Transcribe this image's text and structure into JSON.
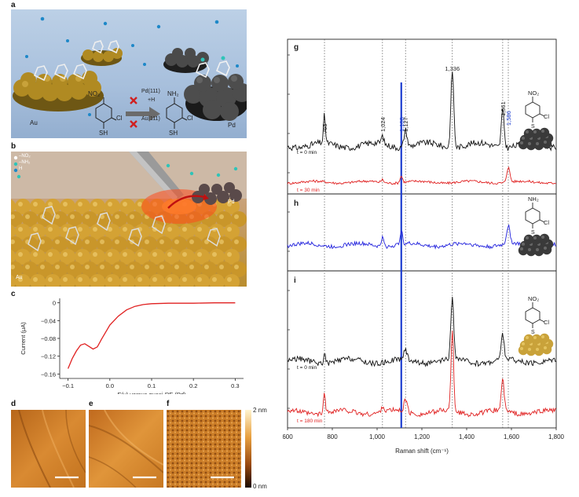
{
  "panels": {
    "a": {
      "label": "a",
      "metal_left": "Au",
      "metal_right": "Pd",
      "surface_top": "Pd(111)",
      "surface_bottom": "Au(111)",
      "reaction_arrow": "+H",
      "reactant_groups": [
        "NO₂",
        "Cl",
        "SH"
      ],
      "product_groups": [
        "NH₂",
        "Cl",
        "SH"
      ]
    },
    "b": {
      "label": "b",
      "legend": [
        "–NO₂",
        "–NH₂",
        "H"
      ],
      "metal_left": "Au",
      "metal_right": "Pd"
    },
    "c": {
      "label": "c"
    },
    "d": {
      "label": "d"
    },
    "e": {
      "label": "e"
    },
    "f": {
      "label": "f",
      "scale_top": "2 nm",
      "scale_bottom": "0 nm"
    },
    "g": {
      "label": "g",
      "groups": [
        "NO₂",
        "S",
        "Cl"
      ]
    },
    "h": {
      "label": "h",
      "groups": [
        "NH₂",
        "S",
        "Cl"
      ]
    },
    "i": {
      "label": "i",
      "groups": [
        "NO₂",
        "S",
        "Cl"
      ]
    }
  },
  "chart_data": [
    {
      "type": "line",
      "panel": "c",
      "xlabel": "E(v) versus quasi-RE (Pd)",
      "ylabel": "Current (μA)",
      "xlim": [
        -0.12,
        0.32
      ],
      "ylim": [
        -0.17,
        0.01
      ],
      "xticks": [
        "−0.1",
        "0.0",
        "0.1",
        "0.2",
        "0.3"
      ],
      "xtick_values": [
        -0.1,
        0.0,
        0.1,
        0.2,
        0.3
      ],
      "yticks": [
        "0",
        "−0.04",
        "−0.08",
        "−0.12",
        "−0.16"
      ],
      "ytick_values": [
        0,
        -0.04,
        -0.08,
        -0.12,
        -0.16
      ],
      "color": "#e02020",
      "x": [
        -0.1,
        -0.09,
        -0.08,
        -0.07,
        -0.06,
        -0.05,
        -0.04,
        -0.03,
        -0.02,
        -0.01,
        0.0,
        0.02,
        0.04,
        0.06,
        0.08,
        0.1,
        0.14,
        0.2,
        0.25,
        0.3
      ],
      "y": [
        -0.148,
        -0.125,
        -0.108,
        -0.095,
        -0.092,
        -0.098,
        -0.104,
        -0.099,
        -0.082,
        -0.066,
        -0.05,
        -0.03,
        -0.016,
        -0.008,
        -0.004,
        -0.002,
        -0.001,
        -0.001,
        0.0,
        0.0
      ]
    },
    {
      "type": "line",
      "panel": "g-h-i",
      "xlabel": "Raman shift (cm⁻¹)",
      "ylabel": "Intensity (a.u.)",
      "xlim": [
        600,
        1800
      ],
      "xticks": [
        "600",
        "800",
        "1,000",
        "1,200",
        "1,400",
        "1,600",
        "1,800"
      ],
      "xtick_values": [
        600,
        800,
        1000,
        1200,
        1400,
        1600,
        1800
      ],
      "peak_markers": [
        765,
        1024,
        1108,
        1127,
        1336,
        1561,
        1586
      ],
      "highlight_line": 1108,
      "peak_labels": [
        {
          "text": "765",
          "x": 765,
          "color": "#222222"
        },
        {
          "text": "1,024",
          "x": 1024,
          "color": "#222222"
        },
        {
          "text": "1,108",
          "x": 1108,
          "color": "#1f3fd0"
        },
        {
          "text": "1,127",
          "x": 1127,
          "color": "#222222"
        },
        {
          "text": "1,336",
          "x": 1336,
          "color": "#222222"
        },
        {
          "text": "1,561",
          "x": 1561,
          "color": "#222222"
        },
        {
          "text": "1,586",
          "x": 1586,
          "color": "#1f3fd0"
        }
      ],
      "series": [
        {
          "name": "g: t = 0 min",
          "panel": "g",
          "label": "t = 0 min",
          "color": "#111111",
          "peaks": [
            [
              765,
              1.6,
              6
            ],
            [
              1024,
              0.45,
              8
            ],
            [
              1127,
              1.0,
              10
            ],
            [
              1336,
              4.5,
              9
            ],
            [
              1561,
              2.2,
              9
            ]
          ]
        },
        {
          "name": "g: t = 30 min",
          "panel": "g",
          "label": "t = 30 min",
          "color": "#e02020",
          "peaks": [
            [
              1024,
              0.4,
              8
            ],
            [
              1108,
              0.9,
              8
            ],
            [
              1586,
              2.1,
              10
            ]
          ]
        },
        {
          "name": "h",
          "panel": "h",
          "label": "",
          "color": "#2222dd",
          "peaks": [
            [
              1024,
              0.8,
              8
            ],
            [
              1108,
              1.2,
              8
            ],
            [
              1586,
              1.6,
              11
            ]
          ]
        },
        {
          "name": "i: t = 0 min",
          "panel": "i",
          "label": "t = 0 min",
          "color": "#111111",
          "peaks": [
            [
              765,
              0.6,
              6
            ],
            [
              1127,
              0.6,
              10
            ],
            [
              1336,
              3.9,
              9
            ],
            [
              1561,
              1.6,
              9
            ]
          ]
        },
        {
          "name": "i: t = 180 min",
          "panel": "i",
          "label": "t = 180 min",
          "color": "#e02020",
          "peaks": [
            [
              765,
              1.5,
              6
            ],
            [
              1024,
              0.4,
              8
            ],
            [
              1127,
              0.9,
              10
            ],
            [
              1336,
              5.8,
              8
            ],
            [
              1561,
              2.2,
              9
            ]
          ]
        }
      ]
    }
  ],
  "colors": {
    "red": "#e02020",
    "blue": "#1f3fd0",
    "gold": "#c9a23a",
    "pd": "#3a3a3a"
  }
}
